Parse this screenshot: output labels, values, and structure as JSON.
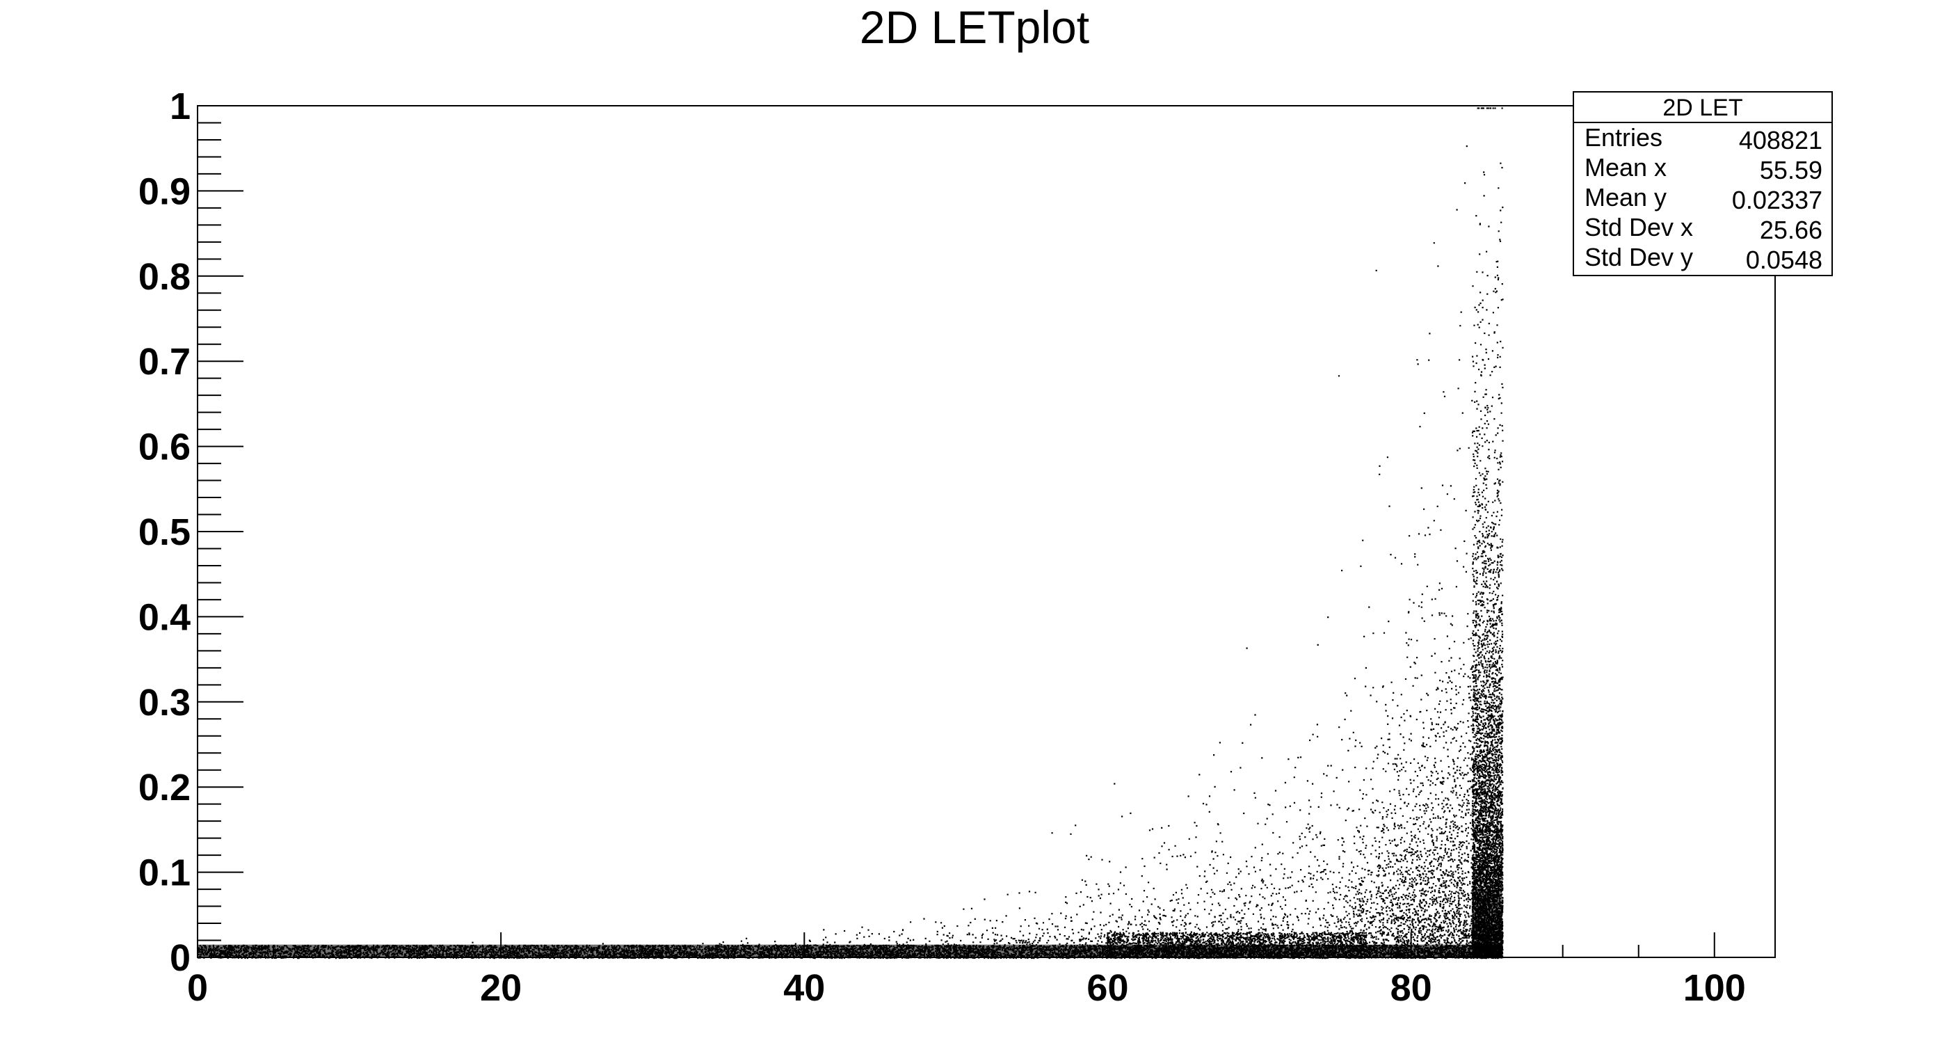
{
  "chart_data": {
    "type": "scatter",
    "title": "2D LETplot",
    "xlabel": "",
    "ylabel": "",
    "xlim": [
      0,
      104
    ],
    "ylim": [
      0,
      1
    ],
    "x_ticks": [
      0,
      20,
      40,
      60,
      80,
      100
    ],
    "x_tick_labels": [
      "0",
      "20",
      "40",
      "60",
      "80",
      "100"
    ],
    "y_ticks": [
      0,
      0.1,
      0.2,
      0.3,
      0.4,
      0.5,
      0.6,
      0.7,
      0.8,
      0.9,
      1
    ],
    "y_tick_labels": [
      "0",
      "0.1",
      "0.2",
      "0.3",
      "0.4",
      "0.5",
      "0.6",
      "0.7",
      "0.8",
      "0.9",
      "1"
    ],
    "grid": false,
    "marker_color": "#000000",
    "description_of_distribution": {
      "x_max_data": 86,
      "dense_band_y": [
        0,
        0.015
      ],
      "dense_column_x": [
        84,
        86
      ]
    },
    "stats_box": {
      "name": "2D LET",
      "rows": [
        {
          "label": "Entries",
          "value": "408821"
        },
        {
          "label": "Mean x",
          "value": "55.59"
        },
        {
          "label": "Mean y",
          "value": "0.02337"
        },
        {
          "label": "Std Dev x",
          "value": "25.66"
        },
        {
          "label": "Std Dev y",
          "value": "0.0548"
        }
      ]
    }
  }
}
